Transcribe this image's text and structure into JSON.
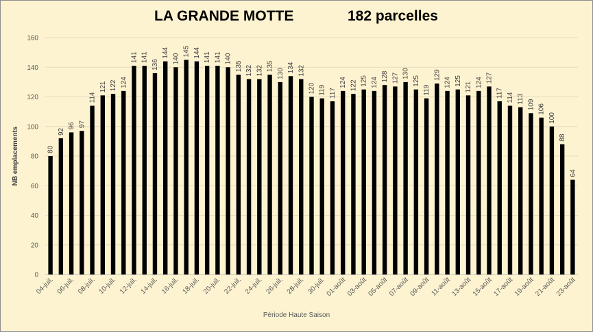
{
  "chart_data": {
    "type": "bar",
    "title": "LA GRANDE MOTTE",
    "subtitle": "182 parcelles",
    "xlabel": "Période Haute Saison",
    "ylabel": "NB emplacements",
    "ylim": [
      0,
      160
    ],
    "yticks": [
      0,
      20,
      40,
      60,
      80,
      100,
      120,
      140,
      160
    ],
    "grid": true,
    "legend": "none",
    "bar_color": "#000000",
    "categories": [
      "04-juil.",
      "05-juil.",
      "06-juil.",
      "07-juil.",
      "08-juil.",
      "09-juil.",
      "10-juil.",
      "11-juil.",
      "12-juil.",
      "13-juil.",
      "14-juil.",
      "15-juil.",
      "16-juil.",
      "17-juil.",
      "18-juil.",
      "19-juil.",
      "20-juil.",
      "21-juil.",
      "22-juil.",
      "23-juil.",
      "24-juil.",
      "25-juil.",
      "26-juil.",
      "27-juil.",
      "28-juil.",
      "29-juil.",
      "30-juil.",
      "31-juil.",
      "01-août",
      "02-août",
      "03-août",
      "04-août",
      "05-août",
      "06-août",
      "07-août",
      "08-août",
      "09-août",
      "10-août",
      "11-août",
      "12-août",
      "13-août",
      "14-août",
      "15-août",
      "16-août",
      "17-août",
      "18-août",
      "19-août",
      "20-août",
      "21-août",
      "22-août",
      "23-août"
    ],
    "values": [
      80,
      92,
      96,
      97,
      114,
      121,
      122,
      124,
      141,
      141,
      136,
      144,
      140,
      145,
      144,
      141,
      141,
      140,
      135,
      132,
      132,
      135,
      130,
      134,
      132,
      120,
      119,
      117,
      124,
      122,
      125,
      124,
      128,
      127,
      130,
      125,
      119,
      129,
      124,
      125,
      121,
      124,
      127,
      117,
      114,
      113,
      109,
      106,
      100,
      88,
      64
    ],
    "tick_labels_shown": [
      "04-juil.",
      "06-juil.",
      "08-juil.",
      "10-juil.",
      "12-juil.",
      "14-juil.",
      "16-juil.",
      "18-juil.",
      "20-juil.",
      "22-juil.",
      "24-juil.",
      "26-juil.",
      "28-juil.",
      "30-juil.",
      "01-août",
      "03-août",
      "05-août",
      "07-août",
      "09-août",
      "11-août",
      "13-août",
      "15-août",
      "17-août",
      "19-août",
      "21-août",
      "23-août"
    ]
  }
}
